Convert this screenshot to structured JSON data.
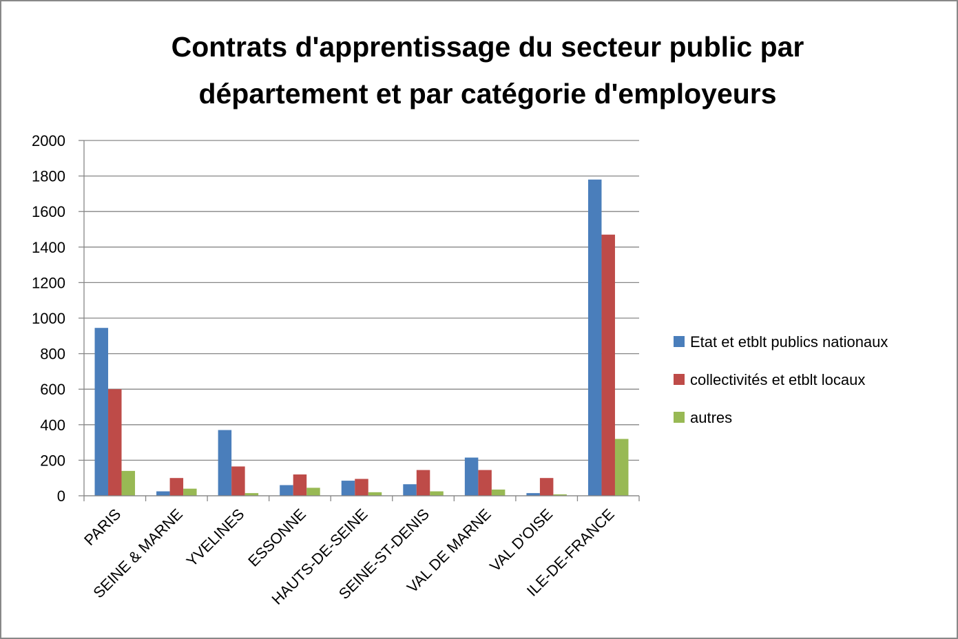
{
  "chart_data": {
    "type": "bar",
    "title": [
      "Contrats d'apprentissage du secteur public par",
      "département et par catégorie d'employeurs"
    ],
    "categories": [
      "PARIS",
      "SEINE & MARNE",
      "YVELINES",
      "ESSONNE",
      "HAUTS-DE-SEINE",
      "SEINE-ST-DENIS",
      "VAL DE MARNE",
      "VAL D'OISE",
      "ILE-DE-FRANCE"
    ],
    "series": [
      {
        "name": "Etat et etblt publics nationaux",
        "color": "#4a7ebb",
        "values": [
          945,
          25,
          370,
          60,
          85,
          65,
          215,
          15,
          1780
        ]
      },
      {
        "name": "collectivités et etblt locaux",
        "color": "#be4b48",
        "values": [
          600,
          100,
          165,
          120,
          95,
          145,
          145,
          100,
          1470
        ]
      },
      {
        "name": "autres",
        "color": "#98b954",
        "values": [
          140,
          40,
          15,
          45,
          20,
          25,
          35,
          8,
          320
        ]
      }
    ],
    "ylim": [
      0,
      2000
    ],
    "yticks": [
      0,
      200,
      400,
      600,
      800,
      1000,
      1200,
      1400,
      1600,
      1800,
      2000
    ],
    "grid": true,
    "legend": "right"
  }
}
